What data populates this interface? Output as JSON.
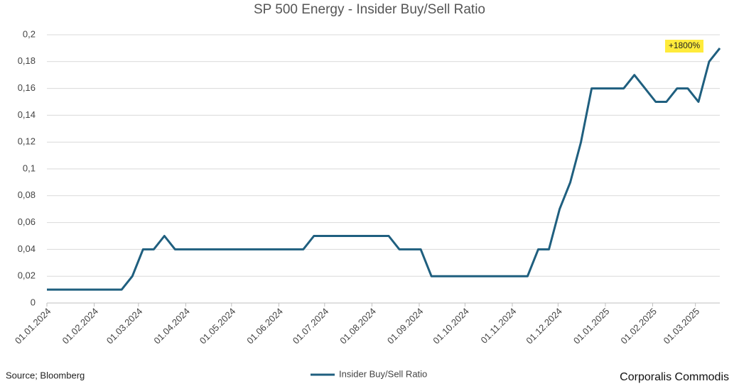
{
  "chart_data": {
    "type": "line",
    "title": "SP 500 Energy - Insider Buy/Sell Ratio",
    "x": [
      "2024-01-01",
      "2024-01-08",
      "2024-01-15",
      "2024-01-22",
      "2024-01-29",
      "2024-02-05",
      "2024-02-12",
      "2024-02-19",
      "2024-02-26",
      "2024-03-04",
      "2024-03-11",
      "2024-03-18",
      "2024-03-25",
      "2024-04-01",
      "2024-04-08",
      "2024-04-15",
      "2024-04-22",
      "2024-04-29",
      "2024-05-06",
      "2024-05-13",
      "2024-05-20",
      "2024-05-27",
      "2024-06-03",
      "2024-06-10",
      "2024-06-17",
      "2024-06-24",
      "2024-07-01",
      "2024-07-08",
      "2024-07-15",
      "2024-07-22",
      "2024-07-29",
      "2024-08-05",
      "2024-08-12",
      "2024-08-19",
      "2024-08-26",
      "2024-09-02",
      "2024-09-09",
      "2024-09-16",
      "2024-09-23",
      "2024-09-30",
      "2024-10-07",
      "2024-10-14",
      "2024-10-21",
      "2024-10-28",
      "2024-11-04",
      "2024-11-11",
      "2024-11-18",
      "2024-11-25",
      "2024-12-02",
      "2024-12-09",
      "2024-12-16",
      "2024-12-23",
      "2024-12-30",
      "2025-01-06",
      "2025-01-13",
      "2025-01-20",
      "2025-01-27",
      "2025-02-03",
      "2025-02-10",
      "2025-02-17",
      "2025-02-24",
      "2025-03-03",
      "2025-03-10",
      "2025-03-17"
    ],
    "series": [
      {
        "name": "Insider Buy/Sell Ratio",
        "color": "#1f5f7f",
        "values": [
          0.01,
          0.01,
          0.01,
          0.01,
          0.01,
          0.01,
          0.01,
          0.01,
          0.02,
          0.04,
          0.04,
          0.05,
          0.04,
          0.04,
          0.04,
          0.04,
          0.04,
          0.04,
          0.04,
          0.04,
          0.04,
          0.04,
          0.04,
          0.04,
          0.04,
          0.05,
          0.05,
          0.05,
          0.05,
          0.05,
          0.05,
          0.05,
          0.05,
          0.04,
          0.04,
          0.04,
          0.02,
          0.02,
          0.02,
          0.02,
          0.02,
          0.02,
          0.02,
          0.02,
          0.02,
          0.02,
          0.04,
          0.04,
          0.07,
          0.09,
          0.12,
          0.16,
          0.16,
          0.16,
          0.16,
          0.17,
          0.16,
          0.15,
          0.15,
          0.16,
          0.16,
          0.15,
          0.18,
          0.19
        ]
      }
    ],
    "xlim": [
      "2024-01-01",
      "2025-03-17"
    ],
    "xticks": [
      {
        "value": "2024-01-01",
        "label": "01.01.2024"
      },
      {
        "value": "2024-02-01",
        "label": "01.02.2024"
      },
      {
        "value": "2024-03-01",
        "label": "01.03.2024"
      },
      {
        "value": "2024-04-01",
        "label": "01.04.2024"
      },
      {
        "value": "2024-05-01",
        "label": "01.05.2024"
      },
      {
        "value": "2024-06-01",
        "label": "01.06.2024"
      },
      {
        "value": "2024-07-01",
        "label": "01.07.2024"
      },
      {
        "value": "2024-08-01",
        "label": "01.08.2024"
      },
      {
        "value": "2024-09-01",
        "label": "01.09.2024"
      },
      {
        "value": "2024-10-01",
        "label": "01.10.2024"
      },
      {
        "value": "2024-11-01",
        "label": "01.11.2024"
      },
      {
        "value": "2024-12-01",
        "label": "01.12.2024"
      },
      {
        "value": "2025-01-01",
        "label": "01.01.2025"
      },
      {
        "value": "2025-02-01",
        "label": "01.02.2025"
      },
      {
        "value": "2025-03-01",
        "label": "01.03.2025"
      }
    ],
    "ylim": [
      0,
      0.2
    ],
    "yticks": [
      0,
      {
        "value": 0.02,
        "label": "0,02"
      },
      {
        "value": 0.04,
        "label": "0,04"
      },
      {
        "value": 0.06,
        "label": "0,06"
      },
      {
        "value": 0.08,
        "label": "0,08"
      },
      {
        "value": 0.1,
        "label": "0,1"
      },
      {
        "value": 0.12,
        "label": "0,12"
      },
      {
        "value": 0.14,
        "label": "0,14"
      },
      {
        "value": 0.16,
        "label": "0,16"
      },
      {
        "value": 0.18,
        "label": "0,18"
      },
      {
        "value": 0.2,
        "label": "0,2"
      }
    ],
    "grid": true,
    "annotation": "+1800%",
    "source": "Source; Bloomberg",
    "brand": "Corporalis Commodis"
  }
}
